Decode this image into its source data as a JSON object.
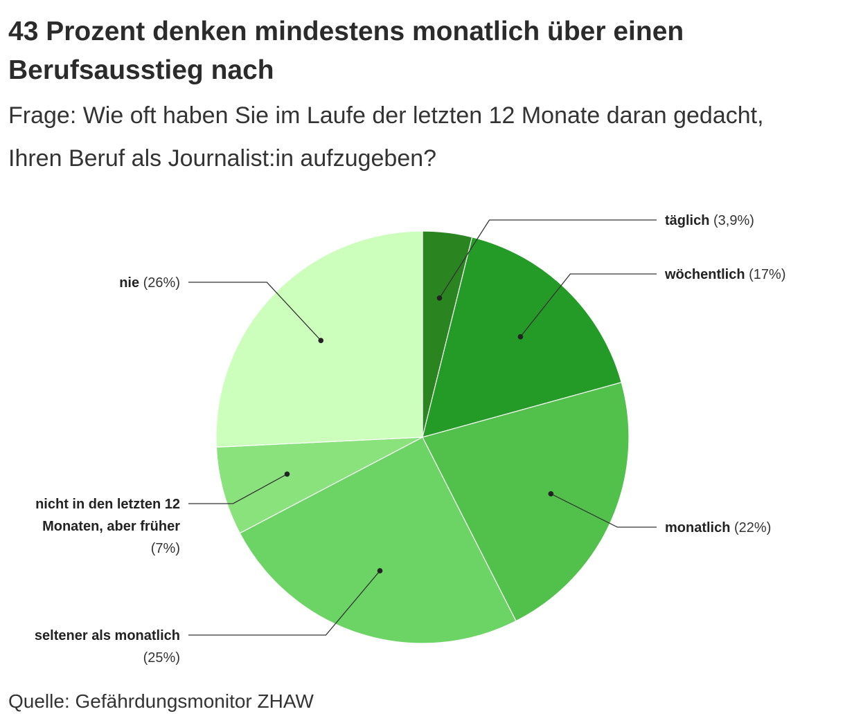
{
  "title": "43 Prozent denken mindestens monatlich über einen Berufsausstieg nach",
  "subtitle": "Frage: Wie oft haben Sie im Laufe der letzten 12 Monate daran gedacht, Ihren Beruf als Journalist:in aufzugeben?",
  "source": "Quelle: Gefährdungsmonitor ZHAW",
  "chart_data": {
    "type": "pie",
    "title": "43 Prozent denken mindestens monatlich über einen Berufsausstieg nach",
    "start": "12 o'clock, clockwise",
    "slices": [
      {
        "name": "täglich",
        "value": 3.9,
        "value_label": "(3,9%)",
        "color": "#2a8520"
      },
      {
        "name": "wöchentlich",
        "value": 17,
        "value_label": "(17%)",
        "color": "#259b27"
      },
      {
        "name": "monatlich",
        "value": 22,
        "value_label": "(22%)",
        "color": "#52c14b"
      },
      {
        "name": "seltener als monatlich",
        "value": 25,
        "value_label": "(25%)",
        "color": "#6bd464"
      },
      {
        "name": "nicht in den letzten 12 Monaten, aber früher",
        "value": 7,
        "value_label": "(7%)",
        "color": "#8ae27d"
      },
      {
        "name": "nie",
        "value": 26,
        "value_label": "(26%)",
        "color": "#ccffbc"
      }
    ]
  }
}
